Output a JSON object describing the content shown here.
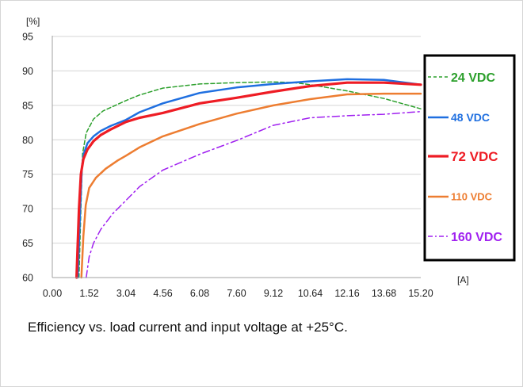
{
  "caption": "Efficiency vs. load current and input voltage at +25°C.",
  "chart_data": {
    "type": "line",
    "title": "",
    "y_unit_label": "[%]",
    "x_unit_label": "[A]",
    "xlim": [
      0,
      15.2
    ],
    "ylim": [
      60,
      95
    ],
    "x_ticks": [
      "0.00",
      "1.52",
      "3.04",
      "4.56",
      "6.08",
      "7.60",
      "9.12",
      "10.64",
      "12.16",
      "13.68",
      "15.20"
    ],
    "y_ticks": [
      "60",
      "65",
      "70",
      "75",
      "80",
      "85",
      "90",
      "95"
    ],
    "grid": "horizontal",
    "legend_position": "right",
    "series": [
      {
        "name": "24 VDC",
        "color": "#2ca02c",
        "style": "dashed",
        "width": 1.5,
        "x": [
          1.1,
          1.18,
          1.25,
          1.4,
          1.7,
          2.1,
          2.6,
          3.04,
          3.6,
          4.56,
          6.08,
          7.6,
          9.12,
          10.0,
          10.64,
          12.16,
          13.68,
          15.2
        ],
        "y": [
          60.0,
          70.0,
          78.0,
          81.0,
          83.0,
          84.2,
          85.0,
          85.7,
          86.5,
          87.5,
          88.1,
          88.3,
          88.4,
          88.3,
          88.0,
          87.1,
          86.0,
          84.5
        ]
      },
      {
        "name": "48 VDC",
        "color": "#1f6fe0",
        "style": "solid",
        "width": 2.5,
        "x": [
          1.05,
          1.15,
          1.22,
          1.3,
          1.45,
          1.7,
          2.0,
          2.4,
          3.04,
          3.6,
          4.56,
          6.08,
          7.6,
          9.12,
          10.64,
          12.16,
          13.68,
          15.2
        ],
        "y": [
          60.0,
          70.0,
          76.0,
          78.0,
          79.5,
          80.5,
          81.3,
          82.0,
          82.9,
          84.0,
          85.3,
          86.8,
          87.6,
          88.1,
          88.5,
          88.8,
          88.7,
          88.0
        ]
      },
      {
        "name": "72 VDC",
        "color": "#ee1c24",
        "style": "solid",
        "width": 3.2,
        "x": [
          1.0,
          1.1,
          1.18,
          1.28,
          1.45,
          1.7,
          2.0,
          2.4,
          3.04,
          3.6,
          4.56,
          6.08,
          7.6,
          9.12,
          10.64,
          12.16,
          13.68,
          15.2
        ],
        "y": [
          60.0,
          70.0,
          75.0,
          77.2,
          78.6,
          79.8,
          80.7,
          81.5,
          82.6,
          83.2,
          83.9,
          85.3,
          86.1,
          87.0,
          87.8,
          88.3,
          88.3,
          88.0
        ]
      },
      {
        "name": "110 VDC",
        "color": "#ed7d31",
        "style": "solid",
        "width": 2.5,
        "x": [
          1.2,
          1.28,
          1.38,
          1.52,
          1.8,
          2.2,
          2.7,
          3.04,
          3.6,
          4.56,
          6.08,
          7.6,
          9.12,
          10.64,
          12.16,
          13.68,
          15.2
        ],
        "y": [
          60.0,
          66.0,
          70.5,
          73.0,
          74.5,
          75.8,
          77.0,
          77.7,
          78.9,
          80.5,
          82.3,
          83.8,
          85.0,
          85.9,
          86.6,
          86.7,
          86.7
        ]
      },
      {
        "name": "160 VDC",
        "color": "#a020f0",
        "style": "dashdot",
        "width": 1.5,
        "x": [
          1.4,
          1.52,
          1.7,
          2.0,
          2.5,
          3.04,
          3.6,
          4.56,
          6.08,
          7.6,
          9.12,
          10.64,
          12.16,
          13.68,
          15.2
        ],
        "y": [
          60.0,
          63.0,
          65.0,
          67.0,
          69.3,
          71.2,
          73.2,
          75.6,
          77.9,
          79.9,
          82.1,
          83.2,
          83.5,
          83.7,
          84.1
        ]
      }
    ]
  }
}
